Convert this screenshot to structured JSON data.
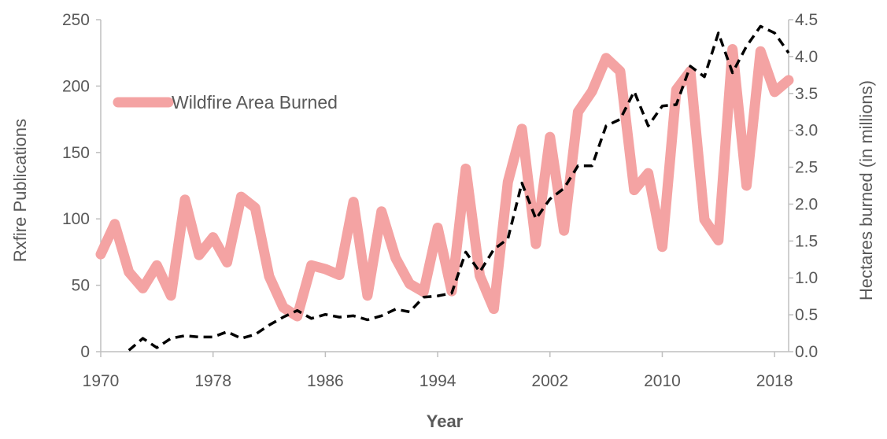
{
  "chart_data": {
    "type": "line",
    "xlabel": "Year",
    "ylabel_left": "Rxfire Publications",
    "ylabel_right": "Hectares burned (in millions)",
    "xlim": [
      1970,
      2019
    ],
    "ylim_left": [
      0,
      250
    ],
    "ylim_right": [
      0,
      4.5
    ],
    "xticks": [
      1970,
      1978,
      1986,
      1994,
      2002,
      2010,
      2018
    ],
    "yticks_left": [
      0,
      50,
      100,
      150,
      200,
      250
    ],
    "yticks_right": [
      "0.0",
      "0.5",
      "1.0",
      "1.5",
      "2.0",
      "2.5",
      "3.0",
      "3.5",
      "4.0",
      "4.5"
    ],
    "grid": false,
    "legend": {
      "position": "upper-left",
      "entries": [
        "Wildfire Area Burned"
      ]
    },
    "colors": {
      "wildfire": "#f4a3a3",
      "publications": "#000000",
      "axis": "#bfbfbf",
      "text": "#595959"
    },
    "series": [
      {
        "name": "Wildfire Area Burned",
        "axis": "right",
        "style": "thick-solid",
        "x": [
          1970,
          1971,
          1972,
          1973,
          1974,
          1975,
          1976,
          1977,
          1978,
          1979,
          1980,
          1981,
          1982,
          1983,
          1984,
          1985,
          1986,
          1987,
          1988,
          1989,
          1990,
          1991,
          1992,
          1993,
          1994,
          1995,
          1996,
          1997,
          1998,
          1999,
          2000,
          2001,
          2002,
          2003,
          2004,
          2005,
          2006,
          2007,
          2008,
          2009,
          2010,
          2011,
          2012,
          2013,
          2014,
          2015,
          2016,
          2017,
          2018,
          2019
        ],
        "values": [
          1.32,
          1.73,
          1.08,
          0.86,
          1.17,
          0.76,
          2.06,
          1.31,
          1.55,
          1.21,
          2.1,
          1.95,
          1.02,
          0.6,
          0.48,
          1.17,
          1.12,
          1.04,
          2.03,
          0.76,
          1.9,
          1.27,
          0.92,
          0.81,
          1.68,
          0.82,
          2.48,
          1.03,
          0.58,
          2.3,
          3.02,
          1.46,
          2.91,
          1.64,
          3.25,
          3.53,
          3.98,
          3.8,
          2.19,
          2.42,
          1.42,
          3.55,
          3.8,
          1.79,
          1.51,
          4.1,
          2.25,
          4.07,
          3.52,
          3.68
        ]
      },
      {
        "name": "",
        "axis": "left",
        "style": "dashed",
        "x": [
          1972,
          1973,
          1974,
          1975,
          1976,
          1977,
          1978,
          1979,
          1980,
          1981,
          1982,
          1983,
          1984,
          1985,
          1986,
          1987,
          1988,
          1989,
          1990,
          1991,
          1992,
          1993,
          1994,
          1995,
          1996,
          1997,
          1998,
          1999,
          2000,
          2001,
          2002,
          2003,
          2004,
          2005,
          2006,
          2007,
          2008,
          2009,
          2010,
          2011,
          2012,
          2013,
          2014,
          2015,
          2016,
          2017,
          2018,
          2019
        ],
        "values": [
          1,
          10,
          3,
          10,
          12,
          11,
          11,
          15,
          10,
          13,
          20,
          26,
          31,
          25,
          28,
          26,
          27,
          24,
          27,
          32,
          30,
          41,
          42,
          44,
          75,
          60,
          77,
          85,
          127,
          100,
          115,
          123,
          140,
          140,
          170,
          175,
          196,
          170,
          185,
          186,
          215,
          207,
          240,
          210,
          230,
          245,
          240,
          225
        ]
      }
    ]
  }
}
